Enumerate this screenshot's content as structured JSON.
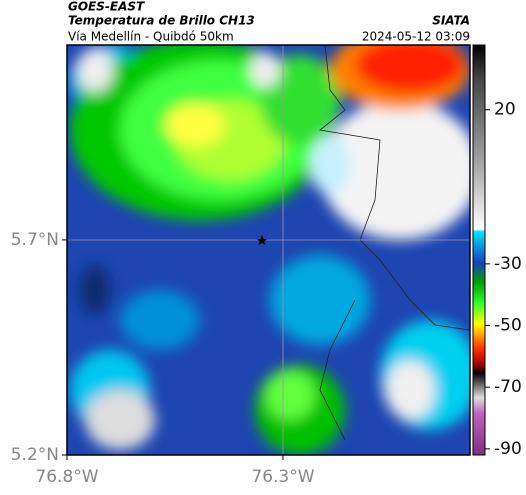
{
  "header": {
    "source": "GOES-EAST",
    "title": "Temperatura de Brillo CH13",
    "agency": "SIATA",
    "subtitle": "Vía Medellín - Quibdó 50km",
    "datetime": "2024-05-12 03:09"
  },
  "map": {
    "lonlim": [
      -76.8,
      -75.867
    ],
    "latlim": [
      5.2,
      6.153
    ],
    "lonticks": [
      {
        "value": -76.8,
        "label": "76.8°W"
      },
      {
        "value": -76.3,
        "label": "76.3°W"
      }
    ],
    "latticks": [
      {
        "value": 5.7,
        "label": "5.7°N"
      },
      {
        "value": 5.2,
        "label": "5.2°N"
      }
    ]
  },
  "colorbar": {
    "lim": [
      -92,
      41
    ],
    "ticks": [
      20,
      -30,
      -50,
      -70,
      -90
    ]
  }
}
